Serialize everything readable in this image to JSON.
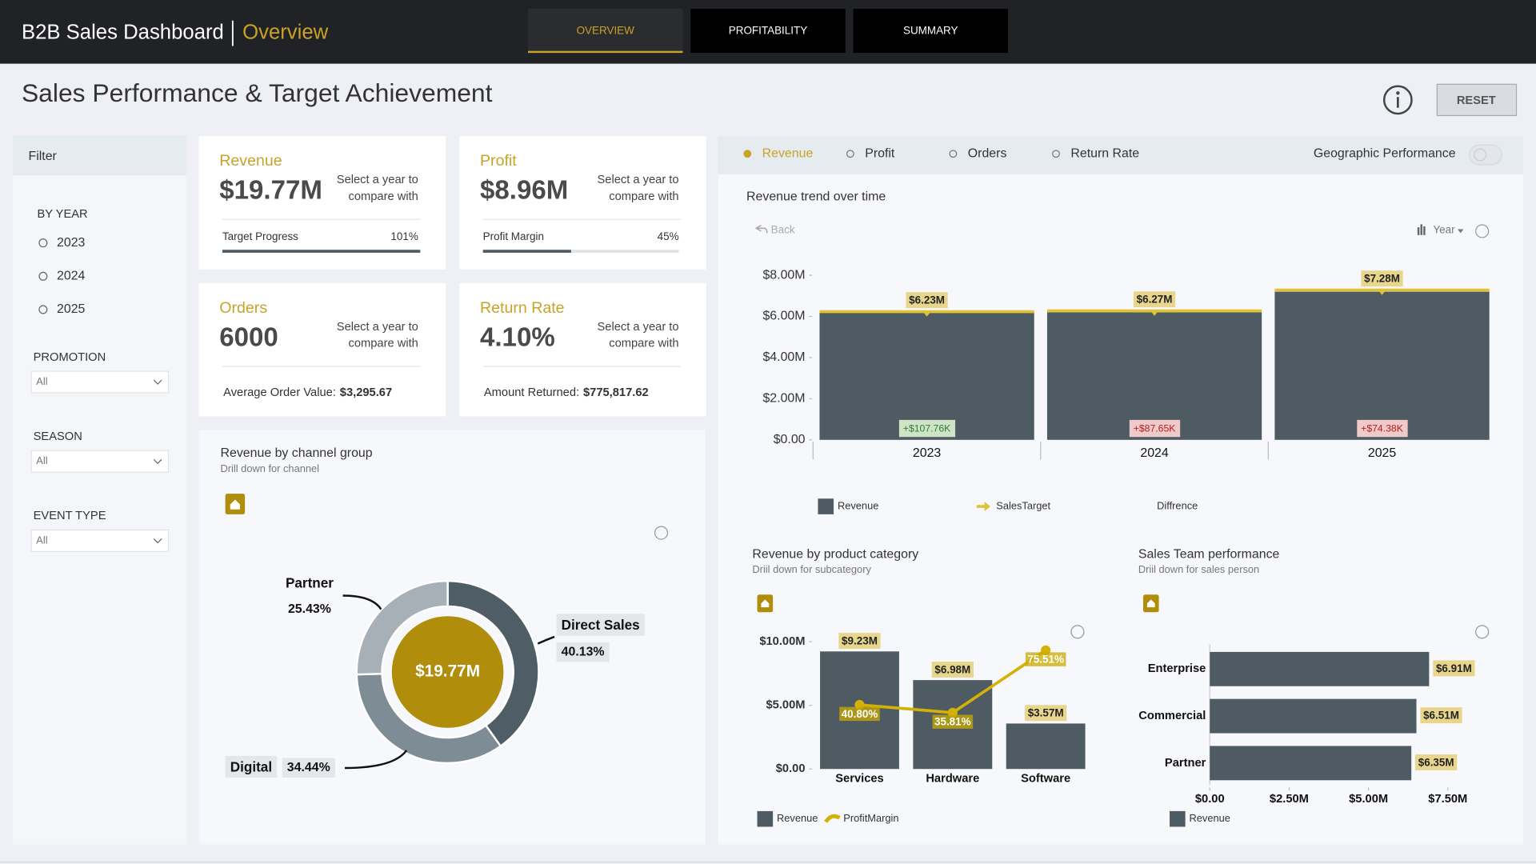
{
  "header": {
    "title": "B2B Sales Dashboard",
    "subtitle": "Overview",
    "tabs": [
      "OVERVIEW",
      "PROFITABILITY",
      "SUMMARY"
    ]
  },
  "page": {
    "title": "Sales Performance & Target Achievement",
    "reset": "RESET"
  },
  "filter": {
    "title": "Filter",
    "year_label": "BY YEAR",
    "years": [
      "2023",
      "2024",
      "2025"
    ],
    "dropdowns": [
      {
        "label": "PROMOTION",
        "value": "All"
      },
      {
        "label": "SEASON",
        "value": "All"
      },
      {
        "label": "EVENT TYPE",
        "value": "All"
      }
    ]
  },
  "kpis": [
    {
      "title": "Revenue",
      "value": "$19.77M",
      "note": [
        "Select a year to",
        "compare with"
      ],
      "progress": {
        "label": "Target Progress",
        "value": 101,
        "value_label": "101%"
      }
    },
    {
      "title": "Profit",
      "value": "$8.96M",
      "note": [
        "Select a year to",
        "compare with"
      ],
      "progress": {
        "label": "Profit Margin",
        "value": 45,
        "value_label": "45%"
      }
    },
    {
      "title": "Orders",
      "value": "6000",
      "note": [
        "Select a year to",
        "compare with"
      ],
      "detail": {
        "label": "Average Order Value:",
        "value": "$3,295.67"
      }
    },
    {
      "title": "Return Rate",
      "value": "4.10%",
      "note": [
        "Select a year to",
        "compare with"
      ],
      "detail": {
        "label": "Amount Returned:",
        "value": "$775,817.62"
      }
    }
  ],
  "metric_selector": {
    "options": [
      "Revenue",
      "Profit",
      "Orders",
      "Return Rate"
    ],
    "selected": 0,
    "toggle_label": "Geographic Performance"
  },
  "chart_data": [
    {
      "type": "pie",
      "title": "Revenue by channel group",
      "subtitle": "Drill down for channel",
      "center_label": "$19.77M",
      "center_color": "#b08d0a",
      "categories": [
        "Direct Sales",
        "Digital",
        "Partner"
      ],
      "values": [
        40.13,
        34.44,
        25.43
      ],
      "value_labels": [
        "40.13%",
        "34.44%",
        "25.43%"
      ],
      "colors": [
        "#4f5d66",
        "#7d8c95",
        "#a7b0b6"
      ]
    },
    {
      "type": "bar",
      "title": "Revenue trend over time",
      "back_label": "Back",
      "drill_label": "Year",
      "categories": [
        "2023",
        "2024",
        "2025"
      ],
      "series": [
        {
          "name": "Revenue",
          "color": "#4f5b63",
          "values": [
            6200000,
            6200000,
            7200000
          ]
        },
        {
          "name": "SalesTarget",
          "color": "#e0c232",
          "values": [
            6230000,
            6270000,
            7280000
          ],
          "value_labels": [
            "$6.23M",
            "$6.27M",
            "$7.28M"
          ]
        },
        {
          "name": "Diffrence",
          "values": [
            107760,
            87650,
            74380
          ],
          "value_labels": [
            "+$107.76K",
            "+$87.65K",
            "+$74.38K"
          ],
          "colors": [
            "#cfe3c7",
            "#efcaca",
            "#efcaca"
          ],
          "label_colors": [
            "#2e7d32",
            "#b71c1c",
            "#b71c1c"
          ]
        }
      ],
      "ylim": [
        0,
        8000000
      ],
      "yticks": [
        {
          "value": 0,
          "label": "$0.00"
        },
        {
          "value": 2000000,
          "label": "$2.00M"
        },
        {
          "value": 4000000,
          "label": "$4.00M"
        },
        {
          "value": 6000000,
          "label": "$6.00M"
        },
        {
          "value": 8000000,
          "label": "$8.00M"
        }
      ]
    },
    {
      "type": "bar",
      "title": "Revenue by product category",
      "subtitle": "Driil down for subcategory",
      "categories": [
        "Services",
        "Hardware",
        "Software"
      ],
      "series": [
        {
          "name": "Revenue",
          "color": "#4f5b63",
          "values": [
            9230000,
            6980000,
            3570000
          ],
          "value_labels": [
            "$9.23M",
            "$6.98M",
            "$3.57M"
          ]
        },
        {
          "name": "ProfitMargin",
          "color": "#d4b106",
          "axis": "y2",
          "values": [
            40.8,
            35.81,
            75.51
          ],
          "value_labels": [
            "40.80%",
            "35.81%",
            "75.51%"
          ]
        }
      ],
      "ylim": [
        0,
        10000000
      ],
      "yticks": [
        {
          "value": 0,
          "label": "$0.00"
        },
        {
          "value": 5000000,
          "label": "$5.00M"
        },
        {
          "value": 10000000,
          "label": "$10.00M"
        }
      ],
      "y2lim": [
        0,
        81
      ]
    },
    {
      "type": "hbar",
      "title": "Sales Team performance",
      "subtitle": "Driil down for sales person",
      "categories": [
        "Enterprise",
        "Commercial",
        "Partner"
      ],
      "series": [
        {
          "name": "Revenue",
          "color": "#4f5b63",
          "values": [
            6910000,
            6510000,
            6350000
          ],
          "value_labels": [
            "$6.91M",
            "$6.51M",
            "$6.35M"
          ]
        }
      ],
      "xlim": [
        0,
        7500000
      ],
      "xticks": [
        {
          "value": 0,
          "label": "$0.00"
        },
        {
          "value": 2500000,
          "label": "$2.50M"
        },
        {
          "value": 5000000,
          "label": "$5.00M"
        },
        {
          "value": 7500000,
          "label": "$7.50M"
        }
      ]
    }
  ]
}
